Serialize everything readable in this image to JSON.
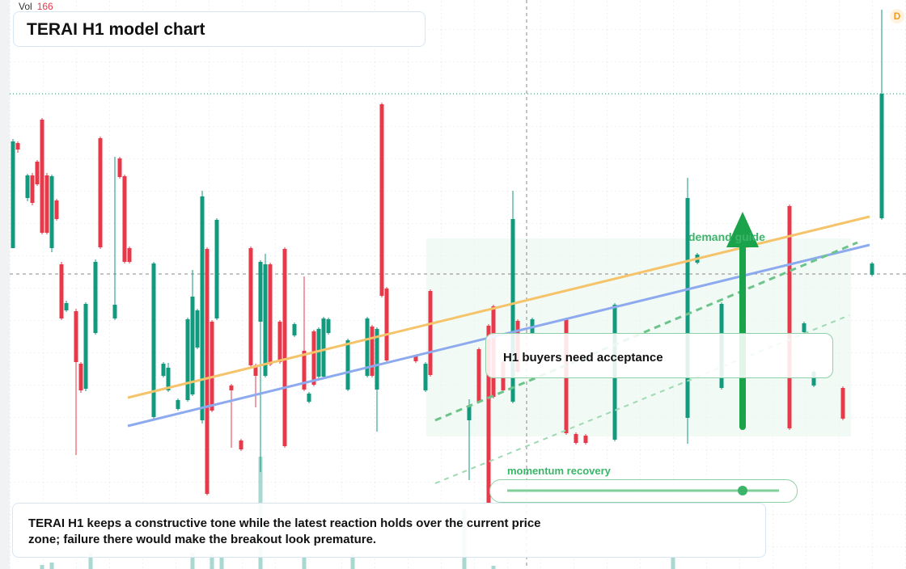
{
  "header": {
    "vol_label": "Vol",
    "vol_value": 166,
    "title": "TERAI H1 model chart",
    "badge": "D"
  },
  "chart_data": {
    "type": "candlestick",
    "x": [
      0,
      1,
      3,
      4,
      5,
      6,
      7,
      8,
      9,
      10,
      11,
      13,
      14,
      15,
      17,
      18,
      21,
      22,
      23,
      24,
      29,
      31,
      32,
      34,
      36,
      37,
      38,
      39,
      40,
      41,
      42,
      45,
      47,
      49,
      50,
      51,
      52,
      53,
      55,
      56,
      58,
      60,
      61,
      62,
      63,
      64,
      65,
      69,
      73,
      74,
      75,
      76,
      77,
      83,
      85,
      86,
      94,
      96,
      98,
      99,
      101,
      103,
      104,
      107,
      114,
      116,
      118,
      124,
      139,
      141,
      146,
      160,
      163,
      165,
      171,
      177,
      179
    ],
    "open": [
      397,
      527,
      459,
      487,
      504,
      556,
      487,
      397,
      456,
      377,
      320,
      319,
      254,
      223,
      292,
      533,
      310,
      508,
      486,
      397,
      188,
      239,
      221,
      198,
      209,
      216,
      274,
      184,
      396,
      306,
      310,
      227,
      159,
      397,
      252,
      306,
      239,
      377,
      306,
      396,
      289,
      270,
      207,
      294,
      238,
      238,
      292,
      222,
      239,
      300,
      222,
      575,
      347,
      263,
      221,
      344,
      184,
      272,
      301,
      325,
      256,
      207,
      307,
      291,
      309,
      167,
      165,
      160,
      187,
      379,
      224,
      449,
      293,
      227,
      224,
      364,
      434
    ],
    "high": [
      532,
      529,
      489,
      490,
      506,
      558,
      490,
      488,
      458,
      380,
      332,
      322,
      256,
      330,
      383,
      535,
      510,
      510,
      488,
      399,
      380,
      256,
      255,
      211,
      311,
      370,
      322,
      468,
      398,
      308,
      434,
      229,
      161,
      399,
      254,
      382,
      390,
      379,
      308,
      398,
      305,
      362,
      219,
      296,
      299,
      312,
      311,
      285,
      312,
      302,
      299,
      577,
      349,
      265,
      256,
      346,
      210,
      274,
      303,
      327,
      258,
      468,
      309,
      311,
      311,
      169,
      167,
      329,
      484,
      391,
      330,
      451,
      306,
      246,
      226,
      380,
      692
    ],
    "low": [
      397,
      515,
      455,
      450,
      474,
      414,
      414,
      392,
      431,
      308,
      318,
      141,
      218,
      220,
      290,
      396,
      308,
      483,
      378,
      378,
      186,
      237,
      219,
      196,
      207,
      214,
      272,
      180,
      91,
      194,
      308,
      150,
      146,
      250,
      200,
      120,
      237,
      251,
      254,
      150,
      287,
      220,
      205,
      226,
      236,
      236,
      290,
      220,
      237,
      237,
      170,
      336,
      256,
      255,
      219,
      238,
      110,
      205,
      80,
      211,
      219,
      205,
      242,
      289,
      166,
      154,
      154,
      158,
      155,
      377,
      222,
      172,
      291,
      225,
      184,
      362,
      432
    ],
    "close": [
      529,
      519,
      487,
      453,
      476,
      416,
      416,
      486,
      433,
      310,
      329,
      256,
      221,
      328,
      380,
      398,
      327,
      485,
      380,
      380,
      378,
      254,
      249,
      209,
      309,
      337,
      320,
      461,
      93,
      196,
      432,
      221,
      148,
      252,
      239,
      380,
      377,
      253,
      256,
      152,
      303,
      222,
      217,
      228,
      297,
      310,
      309,
      283,
      310,
      239,
      297,
      338,
      258,
      257,
      254,
      240,
      202,
      207,
      82,
      213,
      221,
      433,
      244,
      309,
      168,
      156,
      156,
      327,
      459,
      389,
      328,
      174,
      304,
      244,
      186,
      378,
      588
    ],
    "xlim": [
      0,
      180
    ],
    "ylim": [
      0,
      704
    ],
    "up_color": "#129a7f",
    "down_color": "#e8394a",
    "volume": {
      "x": [
        6,
        8,
        16,
        37,
        41,
        43,
        51,
        60,
        70,
        93,
        99,
        136
      ],
      "values": [
        5,
        8,
        20,
        20,
        18,
        15,
        139,
        14,
        18,
        74,
        4,
        14
      ],
      "color": "#a8d8cf"
    }
  },
  "annotations": {
    "zone": "demand guide",
    "callout": "H1 buyers need acceptance",
    "slider": "momentum recovery",
    "note": "TERAI H1 keeps a constructive tone while the latest reaction holds over the current price zone; failure there would make the breakout look premature."
  }
}
